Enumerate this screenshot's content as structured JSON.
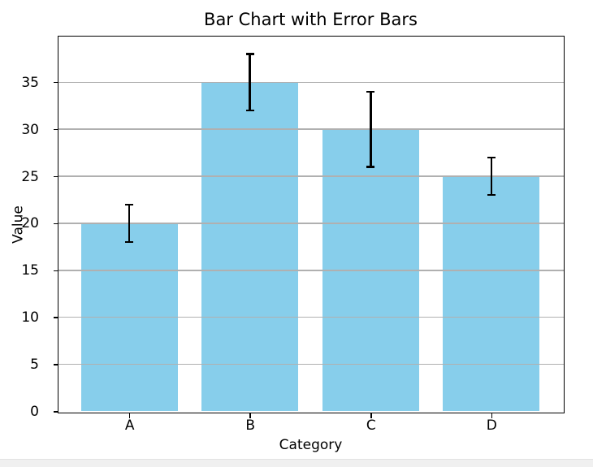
{
  "page": {
    "background": "#ffffff",
    "bottom_strip_color": "#f0f0f0"
  },
  "chart_data": {
    "type": "bar",
    "title": "Bar Chart with Error Bars",
    "xlabel": "Category",
    "ylabel": "Value",
    "categories": [
      "A",
      "B",
      "C",
      "D"
    ],
    "values": [
      20,
      35,
      30,
      25
    ],
    "errors": [
      2,
      3,
      4,
      2
    ],
    "yticks": [
      0,
      5,
      10,
      15,
      20,
      25,
      30,
      35
    ],
    "ylim": [
      0,
      39.9
    ],
    "xlim": [
      -0.59,
      3.59
    ],
    "bar_width_units": 0.8,
    "bar_color": "#87CEEB",
    "error_color": "#000000",
    "error_capsize_px": 10,
    "grid": "horizontal",
    "grid_color": "#b0b0b0",
    "spine_color": "#000000",
    "background_color": "#ffffff"
  }
}
